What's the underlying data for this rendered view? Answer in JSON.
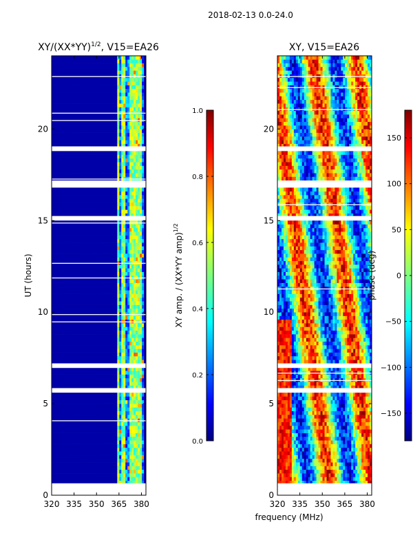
{
  "figure": {
    "suptitle": "2018-02-13 0.0-24.0",
    "shared_xlabel": "frequency (MHz)"
  },
  "colormap": [
    "#00007f",
    "#0000ff",
    "#007fff",
    "#00ffff",
    "#7fff7f",
    "#ffff00",
    "#ff7f00",
    "#ff0000",
    "#7f0000"
  ],
  "chart_data": [
    {
      "type": "heatmap",
      "title_main": "XY/(XX*YY)",
      "title_sup": "1/2",
      "title_tail": ", V15=EA26",
      "xlabel": "frequency (MHz)",
      "ylabel": "UT (hours)",
      "xlim": [
        320,
        383
      ],
      "ylim": [
        0,
        24
      ],
      "xticks": [
        320,
        335,
        350,
        365,
        380
      ],
      "yticks": [
        0,
        5,
        10,
        15,
        20
      ],
      "color_range": [
        0.0,
        1.0
      ],
      "colorbar_label": "XY amp. / (XX*YY amp)",
      "colorbar_label_sup": "1/2",
      "colorbar_ticks": [
        "0.0",
        "0.2",
        "0.4",
        "0.6",
        "0.8",
        "1.0"
      ],
      "colorbar_tick_values": [
        0.0,
        0.2,
        0.4,
        0.6,
        0.8,
        1.0
      ],
      "background_level": 0.04,
      "active_band": [
        363,
        381
      ],
      "bright_channels_mhz": [
        364.5,
        368,
        373,
        376,
        379
      ],
      "flagged_hours": [
        [
          0.0,
          0.65
        ],
        [
          5.65,
          5.85
        ],
        [
          6.95,
          7.2
        ],
        [
          15.1,
          15.25
        ],
        [
          18.8,
          19.05
        ],
        [
          18.95,
          19.05
        ],
        [
          16.9,
          17.1
        ]
      ]
    },
    {
      "type": "heatmap",
      "title_main": "XY, V15=EA26",
      "xlabel": "frequency (MHz)",
      "ylabel": "",
      "xlim": [
        320,
        383
      ],
      "ylim": [
        0,
        24
      ],
      "xticks": [
        320,
        335,
        350,
        365,
        380
      ],
      "yticks": [
        0,
        5,
        10,
        15,
        20
      ],
      "color_range": [
        -180,
        180
      ],
      "colorbar_label": "phase (deg)",
      "colorbar_ticks": [
        "−150",
        "−100",
        "−50",
        "0",
        "50",
        "100",
        "150"
      ],
      "colorbar_tick_values": [
        -150,
        -100,
        -50,
        0,
        50,
        100,
        150
      ],
      "flagged_hours": [
        [
          0.0,
          0.65
        ],
        [
          5.65,
          5.85
        ],
        [
          6.95,
          7.2
        ],
        [
          15.1,
          15.25
        ],
        [
          18.8,
          19.05
        ],
        [
          16.9,
          17.1
        ]
      ]
    }
  ]
}
